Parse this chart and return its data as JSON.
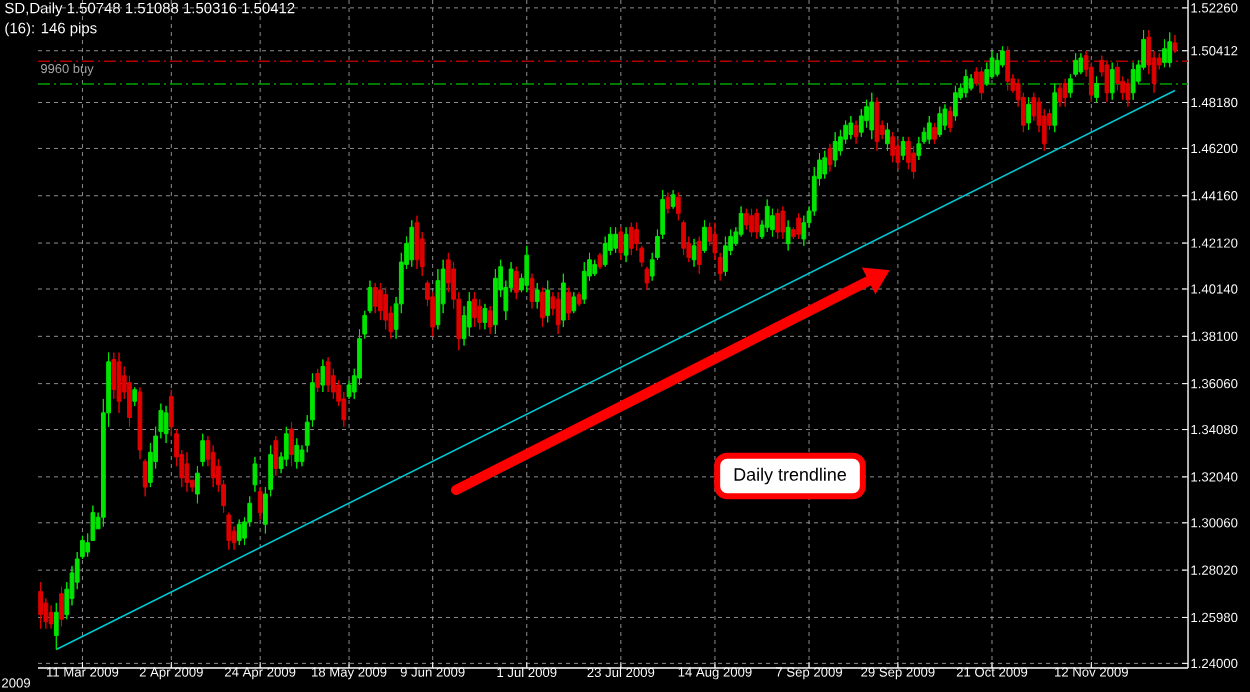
{
  "chart_data": {
    "type": "candlestick",
    "title": "SD,Daily 1.50748 1.51088 1.50316 1.50412",
    "subtitle": "(16): 146 pips",
    "annotations": [
      "Daily trendline",
      "2009"
    ],
    "categories": [
      null,
      null,
      null,
      null,
      null,
      null,
      null,
      null,
      "11 Mar 2009",
      null,
      null,
      null,
      null,
      null,
      null,
      null,
      null,
      null,
      null,
      null,
      null,
      null,
      null,
      null,
      null,
      "2 Apr 2009",
      null,
      null,
      null,
      null,
      null,
      null,
      null,
      null,
      null,
      null,
      null,
      null,
      null,
      null,
      null,
      null,
      "24 Apr 2009",
      null,
      null,
      null,
      null,
      null,
      null,
      null,
      null,
      null,
      null,
      null,
      null,
      null,
      null,
      null,
      null,
      "18 May 2009",
      null,
      null,
      null,
      null,
      null,
      null,
      null,
      null,
      null,
      null,
      null,
      null,
      null,
      null,
      null,
      "9 Jun 2009",
      null,
      null,
      null,
      null,
      null,
      null,
      null,
      null,
      null,
      null,
      null,
      null,
      null,
      null,
      null,
      null,
      null,
      "1 Jul 2009",
      null,
      null,
      null,
      null,
      null,
      null,
      null,
      null,
      null,
      null,
      null,
      null,
      null,
      null,
      null,
      null,
      null,
      "23 Jul 2009",
      null,
      null,
      null,
      null,
      null,
      null,
      null,
      null,
      null,
      null,
      null,
      null,
      null,
      null,
      null,
      null,
      null,
      "14 Aug 2009",
      null,
      null,
      null,
      null,
      null,
      null,
      null,
      null,
      null,
      null,
      null,
      null,
      null,
      null,
      null,
      null,
      null,
      "7 Sep 2009",
      null,
      null,
      null,
      null,
      null,
      null,
      null,
      null,
      null,
      null,
      null,
      null,
      null,
      null,
      null,
      null,
      "29 Sep 2009",
      null,
      null,
      null,
      null,
      null,
      null,
      null,
      null,
      null,
      null,
      null,
      null,
      null,
      null,
      null,
      null,
      null,
      "21 Oct 2009",
      null,
      null,
      null,
      null,
      null,
      null,
      null,
      null,
      null,
      null,
      null,
      null,
      null,
      null,
      null,
      null,
      null,
      null,
      "12 Nov 2009",
      null,
      null,
      null,
      null,
      null,
      null,
      null,
      null,
      null,
      null,
      null,
      null,
      null,
      null,
      null,
      null
    ],
    "ohlc": [
      [
        1.271,
        1.275,
        1.255,
        1.261
      ],
      [
        1.266,
        1.268,
        1.255,
        1.258
      ],
      [
        1.262,
        1.265,
        1.255,
        1.257
      ],
      [
        1.252,
        1.266,
        1.246,
        1.262
      ],
      [
        1.27,
        1.273,
        1.256,
        1.259
      ],
      [
        1.261,
        1.275,
        1.259,
        1.272
      ],
      [
        1.268,
        1.282,
        1.265,
        1.279
      ],
      [
        1.275,
        1.288,
        1.272,
        1.285
      ],
      [
        1.286,
        1.295,
        1.285,
        1.293
      ],
      [
        1.288,
        1.296,
        1.286,
        1.292
      ],
      [
        1.293,
        1.308,
        1.293,
        1.305
      ],
      [
        1.298,
        1.305,
        1.298,
        1.303
      ],
      [
        1.303,
        1.354,
        1.299,
        1.348
      ],
      [
        1.348,
        1.374,
        1.342,
        1.37
      ],
      [
        1.371,
        1.374,
        1.354,
        1.358
      ],
      [
        1.37,
        1.374,
        1.348,
        1.353
      ],
      [
        1.364,
        1.368,
        1.354,
        1.357
      ],
      [
        1.361,
        1.364,
        1.342,
        1.346
      ],
      [
        1.353,
        1.359,
        1.351,
        1.358
      ],
      [
        1.357,
        1.359,
        1.328,
        1.332
      ],
      [
        1.327,
        1.328,
        1.312,
        1.316
      ],
      [
        1.318,
        1.335,
        1.316,
        1.331
      ],
      [
        1.327,
        1.342,
        1.324,
        1.338
      ],
      [
        1.34,
        1.352,
        1.337,
        1.349
      ],
      [
        1.339,
        1.351,
        1.335,
        1.348
      ],
      [
        1.355,
        1.358,
        1.338,
        1.342
      ],
      [
        1.339,
        1.341,
        1.325,
        1.329
      ],
      [
        1.33,
        1.332,
        1.316,
        1.32
      ],
      [
        1.326,
        1.331,
        1.314,
        1.318
      ],
      [
        1.319,
        1.319,
        1.314,
        1.316
      ],
      [
        1.313,
        1.325,
        1.309,
        1.322
      ],
      [
        1.327,
        1.339,
        1.325,
        1.336
      ],
      [
        1.336,
        1.338,
        1.325,
        1.328
      ],
      [
        1.331,
        1.334,
        1.316,
        1.32
      ],
      [
        1.325,
        1.328,
        1.314,
        1.317
      ],
      [
        1.317,
        1.319,
        1.305,
        1.308
      ],
      [
        1.304,
        1.305,
        1.289,
        1.293
      ],
      [
        1.297,
        1.299,
        1.289,
        1.292
      ],
      [
        1.293,
        1.302,
        1.291,
        1.3
      ],
      [
        1.294,
        1.303,
        1.291,
        1.301
      ],
      [
        1.301,
        1.312,
        1.299,
        1.309
      ],
      [
        1.317,
        1.329,
        1.314,
        1.326
      ],
      [
        1.314,
        1.316,
        1.302,
        1.305
      ],
      [
        1.3,
        1.316,
        1.296,
        1.313
      ],
      [
        1.315,
        1.334,
        1.312,
        1.33
      ],
      [
        1.336,
        1.338,
        1.321,
        1.324
      ],
      [
        1.324,
        1.331,
        1.322,
        1.329
      ],
      [
        1.328,
        1.342,
        1.325,
        1.339
      ],
      [
        1.341,
        1.344,
        1.325,
        1.33
      ],
      [
        1.327,
        1.337,
        1.324,
        1.334
      ],
      [
        1.327,
        1.334,
        1.325,
        1.332
      ],
      [
        1.334,
        1.347,
        1.331,
        1.344
      ],
      [
        1.345,
        1.365,
        1.342,
        1.361
      ],
      [
        1.365,
        1.367,
        1.357,
        1.359
      ],
      [
        1.36,
        1.371,
        1.357,
        1.368
      ],
      [
        1.37,
        1.372,
        1.357,
        1.36
      ],
      [
        1.364,
        1.367,
        1.354,
        1.357
      ],
      [
        1.36,
        1.362,
        1.351,
        1.353
      ],
      [
        1.354,
        1.357,
        1.342,
        1.345
      ],
      [
        1.355,
        1.362,
        1.354,
        1.36
      ],
      [
        1.357,
        1.367,
        1.354,
        1.364
      ],
      [
        1.363,
        1.384,
        1.36,
        1.38
      ],
      [
        1.382,
        1.392,
        1.38,
        1.39
      ],
      [
        1.392,
        1.405,
        1.391,
        1.402
      ],
      [
        1.402,
        1.404,
        1.391,
        1.394
      ],
      [
        1.401,
        1.404,
        1.388,
        1.392
      ],
      [
        1.399,
        1.402,
        1.384,
        1.388
      ],
      [
        1.391,
        1.394,
        1.38,
        1.383
      ],
      [
        1.384,
        1.398,
        1.38,
        1.395
      ],
      [
        1.395,
        1.417,
        1.391,
        1.413
      ],
      [
        1.412,
        1.424,
        1.41,
        1.421
      ],
      [
        1.414,
        1.431,
        1.411,
        1.428
      ],
      [
        1.43,
        1.433,
        1.41,
        1.414
      ],
      [
        1.423,
        1.426,
        1.407,
        1.411
      ],
      [
        1.404,
        1.405,
        1.394,
        1.397
      ],
      [
        1.398,
        1.4,
        1.381,
        1.385
      ],
      [
        1.386,
        1.41,
        1.384,
        1.405
      ],
      [
        1.395,
        1.414,
        1.391,
        1.41
      ],
      [
        1.414,
        1.417,
        1.4,
        1.404
      ],
      [
        1.41,
        1.413,
        1.393,
        1.397
      ],
      [
        1.397,
        1.4,
        1.375,
        1.38
      ],
      [
        1.38,
        1.394,
        1.377,
        1.39
      ],
      [
        1.385,
        1.4,
        1.381,
        1.396
      ],
      [
        1.397,
        1.4,
        1.385,
        1.389
      ],
      [
        1.394,
        1.397,
        1.384,
        1.387
      ],
      [
        1.387,
        1.395,
        1.384,
        1.393
      ],
      [
        1.392,
        1.394,
        1.382,
        1.385
      ],
      [
        1.386,
        1.41,
        1.382,
        1.406
      ],
      [
        1.401,
        1.414,
        1.398,
        1.411
      ],
      [
        1.392,
        1.405,
        1.388,
        1.402
      ],
      [
        1.402,
        1.413,
        1.4,
        1.41
      ],
      [
        1.409,
        1.411,
        1.397,
        1.4
      ],
      [
        1.401,
        1.408,
        1.4,
        1.406
      ],
      [
        1.403,
        1.42,
        1.4,
        1.416
      ],
      [
        1.406,
        1.408,
        1.393,
        1.396
      ],
      [
        1.396,
        1.404,
        1.393,
        1.401
      ],
      [
        1.4,
        1.402,
        1.385,
        1.389
      ],
      [
        1.39,
        1.405,
        1.387,
        1.401
      ],
      [
        1.398,
        1.4,
        1.39,
        1.393
      ],
      [
        1.397,
        1.4,
        1.382,
        1.386
      ],
      [
        1.388,
        1.408,
        1.385,
        1.404
      ],
      [
        1.4,
        1.402,
        1.388,
        1.391
      ],
      [
        1.392,
        1.4,
        1.391,
        1.398
      ],
      [
        1.399,
        1.4,
        1.394,
        1.395
      ],
      [
        1.397,
        1.413,
        1.395,
        1.409
      ],
      [
        1.407,
        1.417,
        1.405,
        1.414
      ],
      [
        1.408,
        1.414,
        1.407,
        1.412
      ],
      [
        1.416,
        1.417,
        1.41,
        1.411
      ],
      [
        1.412,
        1.424,
        1.411,
        1.421
      ],
      [
        1.418,
        1.428,
        1.416,
        1.425
      ],
      [
        1.419,
        1.428,
        1.417,
        1.425
      ],
      [
        1.426,
        1.428,
        1.414,
        1.417
      ],
      [
        1.416,
        1.428,
        1.413,
        1.425
      ],
      [
        1.428,
        1.43,
        1.416,
        1.419
      ],
      [
        1.427,
        1.43,
        1.418,
        1.421
      ],
      [
        1.419,
        1.42,
        1.411,
        1.413
      ],
      [
        1.41,
        1.411,
        1.401,
        1.404
      ],
      [
        1.407,
        1.417,
        1.405,
        1.414
      ],
      [
        1.415,
        1.427,
        1.414,
        1.424
      ],
      [
        1.425,
        1.444,
        1.423,
        1.44
      ],
      [
        1.441,
        1.443,
        1.434,
        1.436
      ],
      [
        1.437,
        1.444,
        1.436,
        1.442
      ],
      [
        1.441,
        1.443,
        1.431,
        1.434
      ],
      [
        1.43,
        1.431,
        1.416,
        1.419
      ],
      [
        1.421,
        1.424,
        1.413,
        1.415
      ],
      [
        1.414,
        1.423,
        1.411,
        1.42
      ],
      [
        1.422,
        1.424,
        1.408,
        1.412
      ],
      [
        1.418,
        1.431,
        1.417,
        1.428
      ],
      [
        1.428,
        1.43,
        1.42,
        1.422
      ],
      [
        1.425,
        1.43,
        1.414,
        1.417
      ],
      [
        1.415,
        1.417,
        1.405,
        1.408
      ],
      [
        1.409,
        1.424,
        1.407,
        1.42
      ],
      [
        1.418,
        1.427,
        1.416,
        1.424
      ],
      [
        1.421,
        1.428,
        1.42,
        1.426
      ],
      [
        1.425,
        1.437,
        1.424,
        1.434
      ],
      [
        1.434,
        1.436,
        1.427,
        1.429
      ],
      [
        1.433,
        1.436,
        1.424,
        1.426
      ],
      [
        1.434,
        1.436,
        1.423,
        1.426
      ],
      [
        1.424,
        1.431,
        1.423,
        1.429
      ],
      [
        1.428,
        1.44,
        1.426,
        1.437
      ],
      [
        1.427,
        1.436,
        1.424,
        1.433
      ],
      [
        1.434,
        1.436,
        1.423,
        1.426
      ],
      [
        1.435,
        1.437,
        1.423,
        1.426
      ],
      [
        1.421,
        1.431,
        1.418,
        1.428
      ],
      [
        1.427,
        1.428,
        1.423,
        1.424
      ],
      [
        1.432,
        1.434,
        1.423,
        1.425
      ],
      [
        1.423,
        1.433,
        1.42,
        1.43
      ],
      [
        1.43,
        1.437,
        1.428,
        1.435
      ],
      [
        1.435,
        1.454,
        1.433,
        1.45
      ],
      [
        1.449,
        1.46,
        1.446,
        1.457
      ],
      [
        1.451,
        1.461,
        1.449,
        1.458
      ],
      [
        1.462,
        1.464,
        1.452,
        1.455
      ],
      [
        1.457,
        1.469,
        1.454,
        1.465
      ],
      [
        1.461,
        1.47,
        1.459,
        1.467
      ],
      [
        1.466,
        1.474,
        1.464,
        1.472
      ],
      [
        1.468,
        1.476,
        1.466,
        1.473
      ],
      [
        1.472,
        1.474,
        1.464,
        1.467
      ],
      [
        1.469,
        1.479,
        1.467,
        1.476
      ],
      [
        1.474,
        1.483,
        1.471,
        1.48
      ],
      [
        1.47,
        1.486,
        1.466,
        1.482
      ],
      [
        1.482,
        1.484,
        1.461,
        1.465
      ],
      [
        1.472,
        1.474,
        1.466,
        1.468
      ],
      [
        1.464,
        1.473,
        1.461,
        1.47
      ],
      [
        1.467,
        1.469,
        1.456,
        1.459
      ],
      [
        1.463,
        1.466,
        1.453,
        1.456
      ],
      [
        1.459,
        1.467,
        1.457,
        1.465
      ],
      [
        1.465,
        1.467,
        1.453,
        1.456
      ],
      [
        1.46,
        1.463,
        1.449,
        1.452
      ],
      [
        1.459,
        1.467,
        1.457,
        1.464
      ],
      [
        1.465,
        1.471,
        1.464,
        1.469
      ],
      [
        1.466,
        1.476,
        1.464,
        1.473
      ],
      [
        1.471,
        1.473,
        1.464,
        1.466
      ],
      [
        1.468,
        1.48,
        1.467,
        1.477
      ],
      [
        1.472,
        1.481,
        1.47,
        1.479
      ],
      [
        1.478,
        1.48,
        1.469,
        1.471
      ],
      [
        1.476,
        1.489,
        1.474,
        1.486
      ],
      [
        1.484,
        1.49,
        1.483,
        1.488
      ],
      [
        1.486,
        1.496,
        1.484,
        1.493
      ],
      [
        1.488,
        1.494,
        1.487,
        1.492
      ],
      [
        1.495,
        1.497,
        1.489,
        1.49
      ],
      [
        1.495,
        1.497,
        1.483,
        1.486
      ],
      [
        1.49,
        1.499,
        1.489,
        1.496
      ],
      [
        1.493,
        1.504,
        1.492,
        1.501
      ],
      [
        1.494,
        1.503,
        1.493,
        1.5
      ],
      [
        1.498,
        1.506,
        1.497,
        1.504
      ],
      [
        1.504,
        1.506,
        1.487,
        1.491
      ],
      [
        1.492,
        1.494,
        1.486,
        1.487
      ],
      [
        1.49,
        1.492,
        1.48,
        1.483
      ],
      [
        1.484,
        1.486,
        1.469,
        1.472
      ],
      [
        1.473,
        1.484,
        1.47,
        1.481
      ],
      [
        1.484,
        1.486,
        1.474,
        1.476
      ],
      [
        1.482,
        1.484,
        1.469,
        1.472
      ],
      [
        1.476,
        1.479,
        1.461,
        1.464
      ],
      [
        1.477,
        1.479,
        1.47,
        1.472
      ],
      [
        1.472,
        1.49,
        1.469,
        1.486
      ],
      [
        1.488,
        1.49,
        1.48,
        1.482
      ],
      [
        1.49,
        1.492,
        1.48,
        1.484
      ],
      [
        1.486,
        1.494,
        1.484,
        1.492
      ],
      [
        1.494,
        1.503,
        1.493,
        1.5
      ],
      [
        1.495,
        1.503,
        1.494,
        1.501
      ],
      [
        1.502,
        1.504,
        1.493,
        1.496
      ],
      [
        1.497,
        1.499,
        1.482,
        1.485
      ],
      [
        1.484,
        1.493,
        1.482,
        1.49
      ],
      [
        1.5,
        1.502,
        1.493,
        1.495
      ],
      [
        1.498,
        1.5,
        1.482,
        1.486
      ],
      [
        1.486,
        1.499,
        1.483,
        1.496
      ],
      [
        1.497,
        1.499,
        1.487,
        1.49
      ],
      [
        1.491,
        1.493,
        1.483,
        1.486
      ],
      [
        1.49,
        1.492,
        1.48,
        1.483
      ],
      [
        1.486,
        1.499,
        1.483,
        1.496
      ],
      [
        1.491,
        1.5,
        1.49,
        1.498
      ],
      [
        1.497,
        1.513,
        1.496,
        1.509
      ],
      [
        1.51,
        1.513,
        1.494,
        1.498
      ],
      [
        1.501,
        1.504,
        1.486,
        1.49
      ],
      [
        1.501,
        1.503,
        1.496,
        1.498
      ],
      [
        1.499,
        1.509,
        1.497,
        1.505
      ],
      [
        1.499,
        1.512,
        1.497,
        1.508
      ],
      [
        1.50748,
        1.51088,
        1.50316,
        1.50412
      ]
    ],
    "series": [
      {
        "type": "line",
        "color": "#00c8d0",
        "values": [
          null,
          null,
          null,
          1.246,
          null,
          null,
          null,
          null,
          null,
          null,
          null,
          null,
          null,
          null,
          null,
          null,
          null,
          null,
          null,
          null,
          null,
          null,
          null,
          null,
          null,
          null,
          null,
          null,
          null,
          null,
          null,
          null,
          null,
          null,
          null,
          null,
          null,
          null,
          null,
          null,
          null,
          null,
          null,
          null,
          null,
          null,
          null,
          null,
          null,
          null,
          null,
          null,
          null,
          null,
          null,
          null,
          null,
          null,
          null,
          null,
          null,
          null,
          null,
          null,
          null,
          null,
          null,
          null,
          null,
          null,
          null,
          null,
          null,
          null,
          null,
          null,
          null,
          null,
          null,
          null,
          null,
          null,
          null,
          null,
          null,
          null,
          null,
          null,
          null,
          null,
          null,
          null,
          null,
          null,
          null,
          null,
          null,
          null,
          null,
          null,
          null,
          null,
          null,
          null,
          null,
          null,
          null,
          null,
          null,
          null,
          null,
          null,
          null,
          null,
          null,
          null,
          null,
          null,
          null,
          null,
          null,
          null,
          null,
          null,
          null,
          null,
          null,
          null,
          null,
          null,
          null,
          null,
          null,
          null,
          null,
          null,
          null,
          null,
          null,
          null,
          null,
          null,
          null,
          null,
          null,
          null,
          null,
          null,
          null,
          null,
          null,
          null,
          null,
          null,
          null,
          null,
          null,
          null,
          null,
          null,
          null,
          null,
          null,
          null,
          null,
          null,
          null,
          null,
          null,
          null,
          null,
          null,
          null,
          null,
          null,
          null,
          null,
          null,
          null,
          null,
          null,
          null,
          null,
          null,
          null,
          null,
          null,
          null,
          null,
          null,
          null,
          null,
          null,
          null,
          null,
          null,
          null,
          null,
          null,
          null,
          null,
          null,
          null,
          null,
          null,
          null,
          null,
          null,
          null,
          null,
          null,
          null,
          null,
          null,
          null,
          null,
          null,
          1.487
        ]
      }
    ],
    "ylim": [
      1.238,
      1.526
    ],
    "yticks": [
      {
        "value": 1.24,
        "label": "1.24000"
      },
      {
        "value": 1.2598,
        "label": "1.25980"
      },
      {
        "value": 1.2802,
        "label": "1.28020"
      },
      {
        "value": 1.3006,
        "label": "1.30060"
      },
      {
        "value": 1.3204,
        "label": "1.32040"
      },
      {
        "value": 1.3408,
        "label": "1.34080"
      },
      {
        "value": 1.3606,
        "label": "1.36060"
      },
      {
        "value": 1.381,
        "label": "1.38100"
      },
      {
        "value": 1.4014,
        "label": "1.40140"
      },
      {
        "value": 1.4212,
        "label": "1.42120"
      },
      {
        "value": 1.4416,
        "label": "1.44160"
      },
      {
        "value": 1.462,
        "label": "1.46200"
      },
      {
        "value": 1.4818,
        "label": "1.48180"
      },
      1.50412,
      {
        "value": 1.5226,
        "label": "1.52260"
      }
    ],
    "ref_lines": [
      {
        "axis": "y",
        "value": 1.4996,
        "label": "9960 buy",
        "color": "#b00000",
        "line_style": "dashdot"
      },
      {
        "axis": "y",
        "value": 1.4898,
        "color": "#00a000",
        "line_style": "dashdot"
      }
    ],
    "grid": true
  }
}
